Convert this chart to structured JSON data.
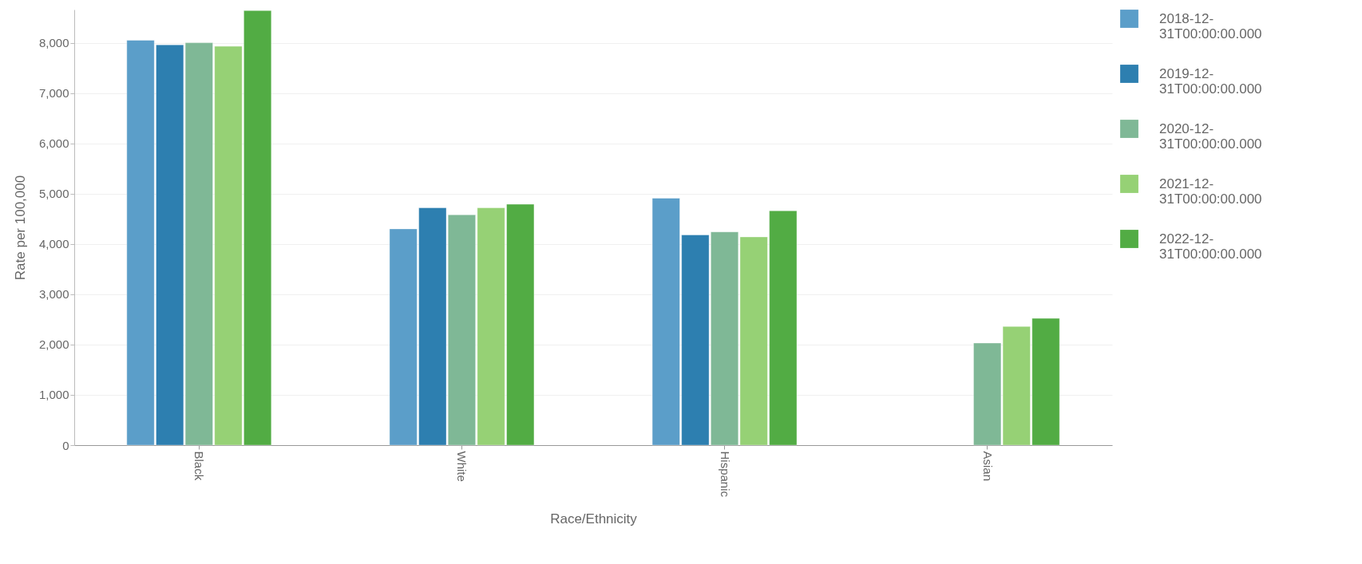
{
  "chart_data": {
    "type": "bar",
    "xlabel": "Race/Ethnicity",
    "ylabel": "Rate per 100,000",
    "categories": [
      "Black",
      "White",
      "Hispanic",
      "Asian"
    ],
    "series": [
      {
        "name": "2018-12-31T00:00:00.000",
        "color": "#5b9ec9",
        "values": [
          8050,
          4300,
          4910,
          null
        ]
      },
      {
        "name": "2019-12-31T00:00:00.000",
        "color": "#2d7fb0",
        "values": [
          7960,
          4720,
          4180,
          null
        ]
      },
      {
        "name": "2020-12-31T00:00:00.000",
        "color": "#7fb896",
        "values": [
          8000,
          4580,
          4240,
          2030
        ]
      },
      {
        "name": "2021-12-31T00:00:00.000",
        "color": "#96d175",
        "values": [
          7930,
          4720,
          4140,
          2360
        ]
      },
      {
        "name": "2022-12-31T00:00:00.000",
        "color": "#52ac44",
        "values": [
          8640,
          4790,
          4660,
          2520
        ]
      }
    ],
    "ylim": [
      0,
      8660
    ],
    "yticks": [
      0,
      {
        "value": 1000,
        "label": "1,000"
      },
      {
        "value": 2000,
        "label": "2,000"
      },
      {
        "value": 3000,
        "label": "3,000"
      },
      {
        "value": 4000,
        "label": "4,000"
      },
      {
        "value": 5000,
        "label": "5,000"
      },
      {
        "value": 6000,
        "label": "6,000"
      },
      {
        "value": 7000,
        "label": "7,000"
      },
      {
        "value": 8000,
        "label": "8,000"
      }
    ],
    "grid": "y",
    "legend": "right"
  }
}
